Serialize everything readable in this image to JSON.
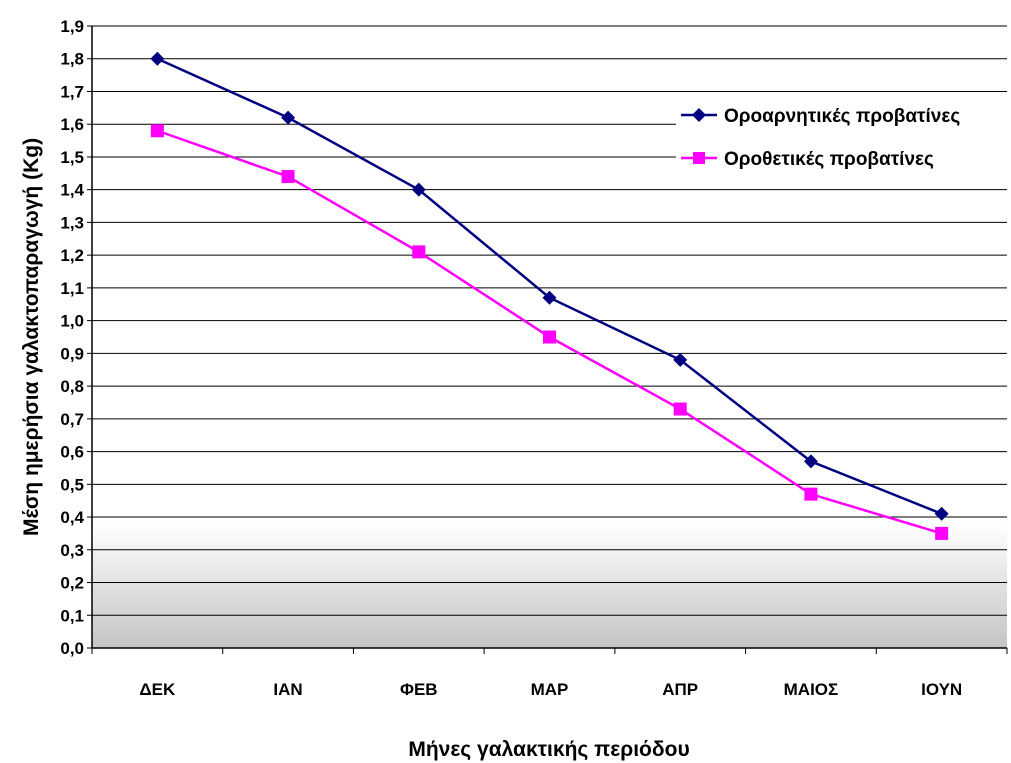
{
  "chart_data": {
    "type": "line",
    "xlabel": "Μήνες γαλακτικής περιόδου",
    "ylabel": "Μέση ημερήσια γαλακτοπαραγωγή (Kg)",
    "categories": [
      "ΔΕΚ",
      "ΙΑΝ",
      "ΦΕΒ",
      "ΜΑΡ",
      "ΑΠΡ",
      "ΜΑΙΟΣ",
      "ΙΟΥΝ"
    ],
    "ylim": [
      0,
      1.9
    ],
    "ytick_step": 0.1,
    "ytick_labels": [
      "0,0",
      "0,1",
      "0,2",
      "0,3",
      "0,4",
      "0,5",
      "0,6",
      "0,7",
      "0,8",
      "0,9",
      "1,0",
      "1,1",
      "1,2",
      "1,3",
      "1,4",
      "1,5",
      "1,6",
      "1,7",
      "1,8",
      "1,9"
    ],
    "grid": true,
    "legend_position": "top-right",
    "series": [
      {
        "name": "Οροαρνητικές προβατίνες",
        "color": "#000080",
        "marker": "diamond",
        "values": [
          1.8,
          1.62,
          1.4,
          1.07,
          0.88,
          0.57,
          0.41
        ]
      },
      {
        "name": "Οροθετικές προβατίνες",
        "color": "#ff00ff",
        "marker": "square",
        "values": [
          1.58,
          1.44,
          1.21,
          0.95,
          0.73,
          0.47,
          0.35
        ]
      }
    ]
  }
}
